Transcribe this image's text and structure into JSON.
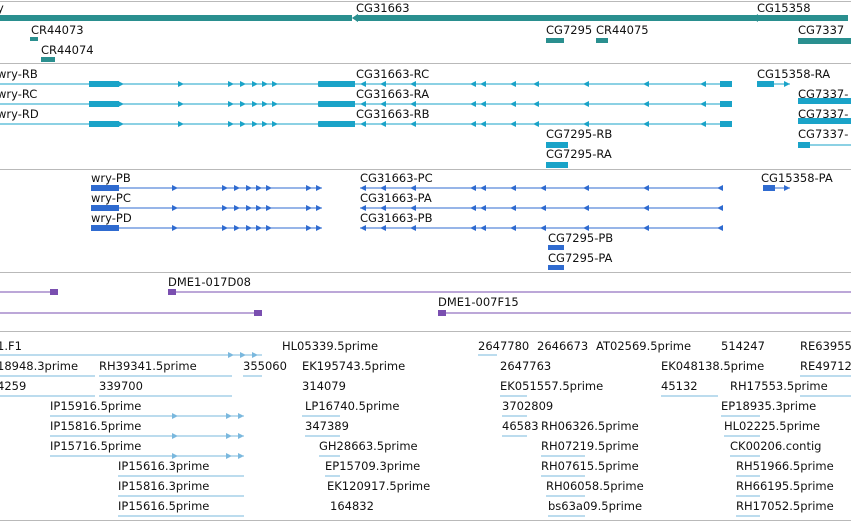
{
  "colors": {
    "gene": "#2a8f8f",
    "mrna": "#1aa3c8",
    "cds": "#2f6bd0",
    "clone": "#7a4fb0",
    "est": "#7ab8de",
    "divider": "#b9b9b9"
  },
  "tracks": {
    "genes": {
      "labels": [
        "y",
        "CG31663",
        "CG15358",
        "CR44073",
        "CR44074",
        "CG7295",
        "CR44075",
        "CG7337"
      ]
    },
    "transcripts": {
      "labels": [
        "wry-RB",
        "wry-RC",
        "wry-RD",
        "CG31663-RC",
        "CG31663-RA",
        "CG31663-RB",
        "CG15358-RA",
        "CG7337-",
        "CG7337-",
        "CG7337-",
        "CG7295-RB",
        "CG7295-RA"
      ]
    },
    "proteins": {
      "labels": [
        "wry-PB",
        "wry-PC",
        "wry-PD",
        "CG31663-PC",
        "CG31663-PA",
        "CG31663-PB",
        "CG15358-PA",
        "CG7295-PB",
        "CG7295-PA"
      ]
    },
    "clones": {
      "labels": [
        "DME1-017D08",
        "DME1-007F15"
      ]
    },
    "ests": {
      "labels": [
        "1.F1",
        "18948.3prime",
        "RH39341.5prime",
        "4259",
        "339700",
        "IP15916.5prime",
        "IP15816.5prime",
        "IP15716.5prime",
        "IP15616.3prime",
        "IP15816.3prime",
        "IP15616.5prime",
        "HL05339.5prime",
        "355060",
        "EK195743.5prime",
        "314079",
        "LP16740.5prime",
        "347389",
        "GH28663.5prime",
        "EP15709.3prime",
        "EK120917.5prime",
        "164832",
        "2647780",
        "2646673",
        "AT02569.5prime",
        "2647763",
        "EK051557.5prime",
        "3702809",
        "46583",
        "RH06326.5prime",
        "RH07219.5prime",
        "RH07615.5prime",
        "RH06058.5prime",
        "bs63a09.5prime",
        "514247",
        "EK048138.5prime",
        "45132",
        "RH17553.5prime",
        "EP18935.3prime",
        "HL02225.5prime",
        "CK00206.contig",
        "RH51966.5prime",
        "RH66195.5prime",
        "RH17052.5prime",
        "RE63955",
        "RE49712"
      ]
    }
  }
}
